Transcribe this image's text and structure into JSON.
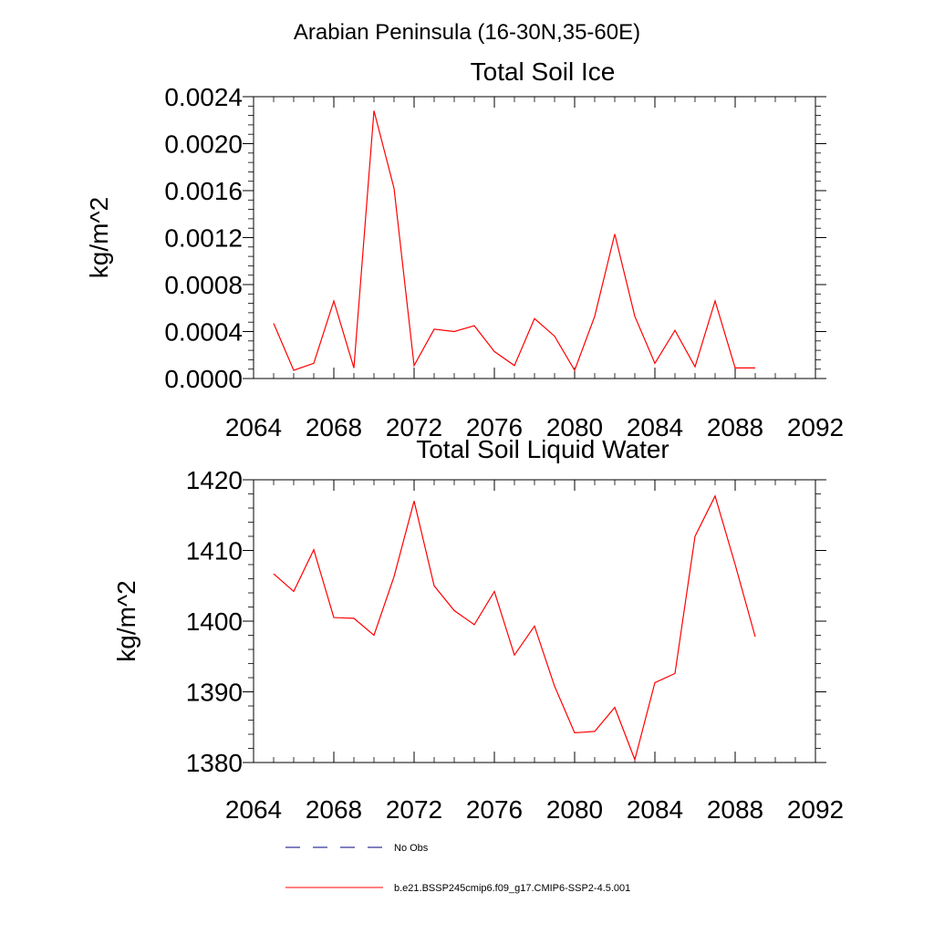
{
  "figure_title": "Arabian Peninsula (16-30N,35-60E)",
  "legend": [
    {
      "label": "No Obs",
      "color": "#000080",
      "dash": true
    },
    {
      "label": "b.e21.BSSP245cmip6.f09_g17.CMIP6-SSP2-4.5.001",
      "color": "#ff0000",
      "dash": false
    }
  ],
  "chart_data": [
    {
      "type": "line",
      "title": "Total Soil Ice",
      "xlabel": "",
      "ylabel": "kg/m^2",
      "xlim": [
        2064,
        2092
      ],
      "ylim": [
        0,
        0.0024
      ],
      "xticks": [
        2064,
        2068,
        2072,
        2076,
        2080,
        2084,
        2088,
        2092
      ],
      "yticks": [
        0,
        0.0004,
        0.0008,
        0.0012,
        0.0016,
        0.002,
        0.0024
      ],
      "ytick_labels": [
        "0.0000",
        "0.0004",
        "0.0008",
        "0.0012",
        "0.0016",
        "0.0020",
        "0.0024"
      ],
      "grid": false,
      "series": [
        {
          "color": "#ff0000",
          "x": [
            2065,
            2066,
            2067,
            2068,
            2069,
            2070,
            2071,
            2072,
            2073,
            2074,
            2075,
            2076,
            2077,
            2078,
            2079,
            2080,
            2081,
            2082,
            2083,
            2084,
            2085,
            2086,
            2087,
            2088,
            2089
          ],
          "values": [
            0.00047,
            7e-05,
            0.00013,
            0.00066,
            9e-05,
            0.00228,
            0.00162,
            0.00011,
            0.00042,
            0.0004,
            0.00045,
            0.00023,
            0.00011,
            0.00051,
            0.00036,
            7e-05,
            0.00053,
            0.00123,
            0.00053,
            0.00013,
            0.00041,
            0.0001,
            0.00066,
            9e-05,
            9e-05
          ]
        }
      ]
    },
    {
      "type": "line",
      "title": "Total Soil Liquid Water",
      "xlabel": "",
      "ylabel": "kg/m^2",
      "xlim": [
        2064,
        2092
      ],
      "ylim": [
        1380,
        1420
      ],
      "xticks": [
        2064,
        2068,
        2072,
        2076,
        2080,
        2084,
        2088,
        2092
      ],
      "yticks": [
        1380,
        1390,
        1400,
        1410,
        1420
      ],
      "ytick_labels": [
        "1380",
        "1390",
        "1400",
        "1410",
        "1420"
      ],
      "grid": false,
      "series": [
        {
          "color": "#ff0000",
          "x": [
            2065,
            2066,
            2067,
            2068,
            2069,
            2070,
            2071,
            2072,
            2073,
            2074,
            2075,
            2076,
            2077,
            2078,
            2079,
            2080,
            2081,
            2082,
            2083,
            2084,
            2085,
            2086,
            2087,
            2088,
            2089
          ],
          "values": [
            1406.7,
            1404.2,
            1410.1,
            1400.5,
            1400.4,
            1398.0,
            1406.3,
            1417.0,
            1405.0,
            1401.5,
            1399.5,
            1404.2,
            1395.2,
            1399.3,
            1390.8,
            1384.2,
            1384.4,
            1387.8,
            1380.4,
            1391.3,
            1392.6,
            1412.0,
            1417.7,
            1408.0,
            1397.8
          ]
        }
      ]
    }
  ]
}
